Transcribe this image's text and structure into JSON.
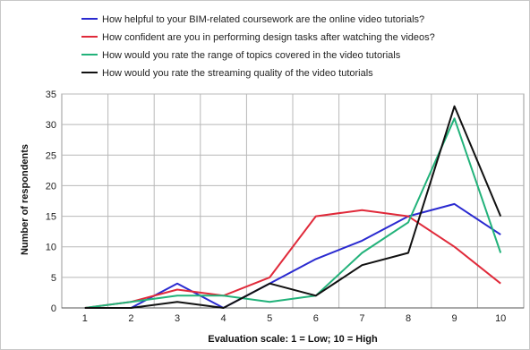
{
  "chart_data": {
    "type": "line",
    "x": [
      1,
      2,
      3,
      4,
      5,
      6,
      7,
      8,
      9,
      10
    ],
    "xlabel": "Evaluation scale: 1 = Low; 10 = High",
    "ylabel": "Number of respondents",
    "ylim": [
      0,
      35
    ],
    "yticks": [
      0,
      5,
      10,
      15,
      20,
      25,
      30,
      35
    ],
    "grid": true,
    "legend_position": "top",
    "series": [
      {
        "name": "How helpful to your BIM-related coursework are the online video tutorials?",
        "color": "#2a2ad0",
        "values": [
          0,
          0,
          4,
          0,
          4,
          8,
          11,
          15,
          17,
          12
        ]
      },
      {
        "name": "How confident are you in performing design tasks after watching the videos?",
        "color": "#e02a3a",
        "values": [
          0,
          1,
          3,
          2,
          5,
          15,
          16,
          15,
          10,
          4
        ]
      },
      {
        "name": "How would you rate the range of topics covered in the video tutorials",
        "color": "#22b27a",
        "values": [
          0,
          1,
          2,
          2,
          1,
          2,
          9,
          14,
          31,
          9
        ]
      },
      {
        "name": "How would you rate the streaming quality of the video tutorials",
        "color": "#111111",
        "values": [
          0,
          0,
          1,
          0,
          4,
          2,
          7,
          9,
          33,
          15
        ]
      }
    ]
  }
}
